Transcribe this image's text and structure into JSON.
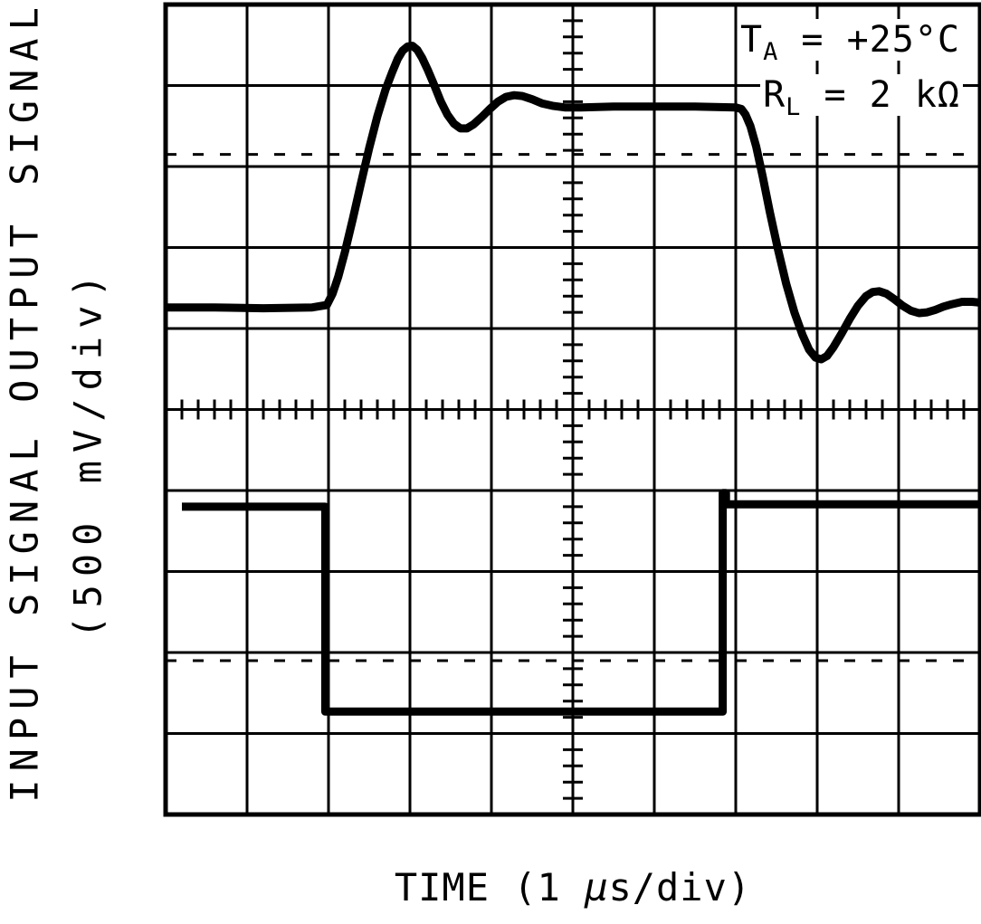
{
  "figure": {
    "y_axis_top_label": "OUTPUT SIGNAL",
    "y_axis_bottom_label": "INPUT SIGNAL",
    "y_axis_scale_label": "(500 mV/div)",
    "x_axis_label": "TIME (1 µs/div)",
    "x_axis_label_parts": {
      "pre": "TIME (1 ",
      "mu": "µ",
      "post": "s/div)"
    },
    "conditions_display": {
      "line1": {
        "main": "T",
        "sub": "A",
        "rest": " = +25°C"
      },
      "line2": {
        "main": "R",
        "sub": "L",
        "rest": " = 2 kΩ"
      }
    }
  },
  "chart_data": {
    "type": "line",
    "subtype": "oscilloscope-graticule",
    "title": "",
    "xlabel": "TIME (1 µs/div)",
    "ylabel": "500 mV/div",
    "x_divisions": 10,
    "y_divisions": 10,
    "x_scale_per_div": "1 µs",
    "y_scale_per_div": "500 mV",
    "minor_tick_div": 0.2,
    "grid": "on",
    "conditions": [
      "TA = +25°C",
      "RL = 2 kΩ"
    ],
    "reference_dashed_lines_y_div": [
      1.85,
      8.1
    ],
    "units_note": "points_div are [x,y] in graticule divisions measured from top-left of the plot",
    "series": [
      {
        "name": "OUTPUT SIGNAL",
        "points_div": [
          [
            0,
            3.74
          ],
          [
            0.6,
            3.74
          ],
          [
            1.2,
            3.75
          ],
          [
            1.8,
            3.74
          ],
          [
            1.98,
            3.71
          ],
          [
            2.05,
            3.57
          ],
          [
            2.12,
            3.36
          ],
          [
            2.2,
            3.06
          ],
          [
            2.3,
            2.64
          ],
          [
            2.4,
            2.2
          ],
          [
            2.5,
            1.77
          ],
          [
            2.6,
            1.38
          ],
          [
            2.7,
            1.05
          ],
          [
            2.78,
            0.84
          ],
          [
            2.85,
            0.67
          ],
          [
            2.91,
            0.57
          ],
          [
            2.97,
            0.52
          ],
          [
            3.03,
            0.51
          ],
          [
            3.09,
            0.56
          ],
          [
            3.15,
            0.66
          ],
          [
            3.22,
            0.81
          ],
          [
            3.3,
            1.0
          ],
          [
            3.38,
            1.2
          ],
          [
            3.46,
            1.36
          ],
          [
            3.54,
            1.47
          ],
          [
            3.62,
            1.53
          ],
          [
            3.7,
            1.53
          ],
          [
            3.78,
            1.48
          ],
          [
            3.88,
            1.39
          ],
          [
            3.98,
            1.29
          ],
          [
            4.08,
            1.2
          ],
          [
            4.18,
            1.14
          ],
          [
            4.28,
            1.12
          ],
          [
            4.38,
            1.13
          ],
          [
            4.5,
            1.17
          ],
          [
            4.62,
            1.22
          ],
          [
            4.75,
            1.25
          ],
          [
            4.9,
            1.27
          ],
          [
            5.1,
            1.27
          ],
          [
            5.5,
            1.26
          ],
          [
            6.0,
            1.26
          ],
          [
            6.5,
            1.26
          ],
          [
            7.0,
            1.27
          ],
          [
            7.07,
            1.29
          ],
          [
            7.12,
            1.36
          ],
          [
            7.18,
            1.5
          ],
          [
            7.25,
            1.75
          ],
          [
            7.33,
            2.12
          ],
          [
            7.42,
            2.57
          ],
          [
            7.52,
            3.03
          ],
          [
            7.62,
            3.45
          ],
          [
            7.72,
            3.8
          ],
          [
            7.82,
            4.08
          ],
          [
            7.9,
            4.26
          ],
          [
            7.98,
            4.36
          ],
          [
            8.05,
            4.38
          ],
          [
            8.12,
            4.34
          ],
          [
            8.2,
            4.23
          ],
          [
            8.3,
            4.06
          ],
          [
            8.4,
            3.88
          ],
          [
            8.5,
            3.72
          ],
          [
            8.6,
            3.6
          ],
          [
            8.68,
            3.55
          ],
          [
            8.76,
            3.54
          ],
          [
            8.85,
            3.57
          ],
          [
            8.95,
            3.64
          ],
          [
            9.05,
            3.72
          ],
          [
            9.15,
            3.78
          ],
          [
            9.25,
            3.81
          ],
          [
            9.35,
            3.8
          ],
          [
            9.45,
            3.77
          ],
          [
            9.55,
            3.73
          ],
          [
            9.65,
            3.7
          ],
          [
            9.78,
            3.67
          ],
          [
            9.9,
            3.67
          ],
          [
            10,
            3.68
          ]
        ]
      },
      {
        "name": "INPUT SIGNAL",
        "points_div": [
          [
            0.2,
            6.2
          ],
          [
            1.96,
            6.2
          ],
          [
            1.96,
            8.73
          ],
          [
            6.84,
            8.73
          ],
          [
            6.84,
            6.03
          ],
          [
            6.88,
            6.03
          ],
          [
            6.88,
            6.17
          ],
          [
            10,
            6.17
          ]
        ]
      }
    ]
  }
}
